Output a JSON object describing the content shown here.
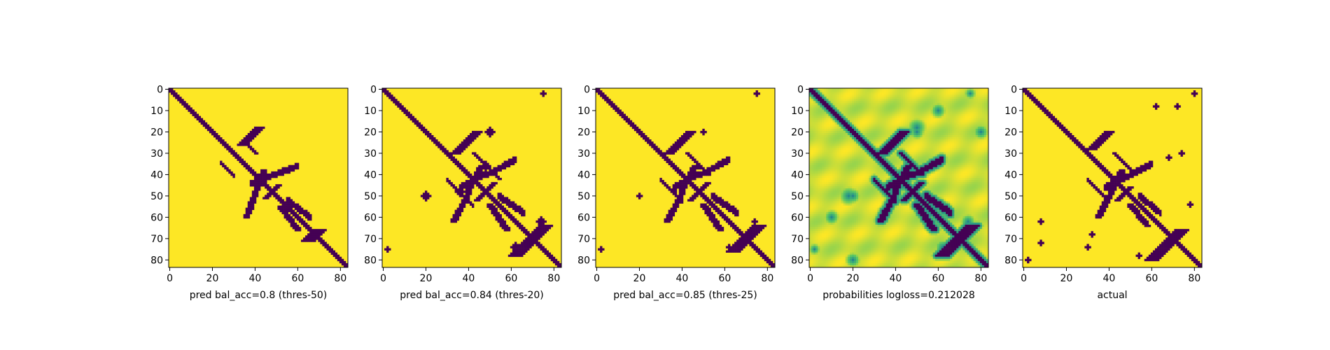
{
  "chart_data": [
    {
      "type": "heatmap",
      "xlabel": "pred bal_acc=0.8 (thres-50)",
      "xticks": [
        0,
        20,
        40,
        60,
        80
      ],
      "yticks": [
        0,
        10,
        20,
        30,
        40,
        50,
        60,
        70,
        80
      ],
      "xlim": [
        -0.5,
        83.5
      ],
      "ylim": [
        83.5,
        -0.5
      ],
      "colormap": "viridis",
      "value_range": [
        0,
        1
      ],
      "size": 84,
      "description": "binary contact map; 0 = dark purple (contact), 1 = yellow",
      "structures": {
        "main_diagonal": true,
        "band_diagonals": [
          [
            0,
            18,
            24,
            1
          ],
          [
            10,
            24,
            30,
            1
          ]
        ],
        "antidiagonals": [
          [
            30,
            18,
            26,
            2
          ],
          [
            48,
            45,
            51,
            1
          ],
          [
            68,
            66,
            71,
            3
          ]
        ],
        "arcs": [
          [
            44,
            38,
            36,
            60,
            1
          ],
          [
            52,
            55,
            60,
            66,
            1
          ]
        ]
      }
    },
    {
      "type": "heatmap",
      "xlabel": "pred bal_acc=0.84 (thres-20)",
      "xticks": [
        0,
        20,
        40,
        60,
        80
      ],
      "yticks": [
        0,
        10,
        20,
        30,
        40,
        50,
        60,
        70,
        80
      ],
      "xlim": [
        -0.5,
        83.5
      ],
      "ylim": [
        83.5,
        -0.5
      ],
      "colormap": "viridis",
      "value_range": [
        0,
        1
      ],
      "size": 84,
      "description": "binary contact map; 0 = dark purple (contact), 1 = yellow",
      "structures": {
        "main_diagonal": true,
        "band_diagonals": [
          [
            0,
            12,
            28,
            1
          ],
          [
            12,
            30,
            42,
            1
          ]
        ],
        "antidiagonals": [
          [
            32,
            20,
            30,
            2
          ],
          [
            48,
            44,
            52,
            1
          ],
          [
            70,
            64,
            78,
            3
          ]
        ],
        "arcs": [
          [
            46,
            36,
            33,
            62,
            1
          ],
          [
            50,
            54,
            58,
            66,
            1
          ]
        ],
        "blobs": [
          [
            50,
            20,
            2
          ],
          [
            36,
            48,
            2
          ],
          [
            75,
            2,
            1
          ],
          [
            62,
            74,
            2
          ]
        ]
      }
    },
    {
      "type": "heatmap",
      "xlabel": "pred bal_acc=0.85 (thres-25)",
      "xticks": [
        0,
        20,
        40,
        60,
        80
      ],
      "yticks": [
        0,
        10,
        20,
        30,
        40,
        50,
        60,
        70,
        80
      ],
      "xlim": [
        -0.5,
        83.5
      ],
      "ylim": [
        83.5,
        -0.5
      ],
      "colormap": "viridis",
      "value_range": [
        0,
        1
      ],
      "size": 84,
      "description": "binary contact map; 0 = dark purple (contact), 1 = yellow",
      "structures": {
        "main_diagonal": true,
        "band_diagonals": [
          [
            0,
            12,
            28,
            1
          ],
          [
            12,
            30,
            40,
            1
          ]
        ],
        "antidiagonals": [
          [
            32,
            20,
            30,
            2
          ],
          [
            48,
            44,
            52,
            1
          ],
          [
            70,
            64,
            76,
            3
          ]
        ],
        "arcs": [
          [
            46,
            36,
            33,
            62,
            1
          ],
          [
            50,
            54,
            58,
            66,
            1
          ]
        ],
        "blobs": [
          [
            50,
            20,
            1
          ],
          [
            36,
            48,
            1
          ],
          [
            75,
            2,
            1
          ],
          [
            62,
            74,
            1
          ]
        ]
      }
    },
    {
      "type": "heatmap",
      "xlabel": "probabilities logloss=0.212028",
      "xticks": [
        0,
        20,
        40,
        60,
        80
      ],
      "yticks": [
        0,
        10,
        20,
        30,
        40,
        50,
        60,
        70,
        80
      ],
      "xlim": [
        -0.5,
        83.5
      ],
      "ylim": [
        83.5,
        -0.5
      ],
      "colormap": "viridis",
      "value_range": [
        0,
        1
      ],
      "size": 84,
      "description": "continuous probability map",
      "structures": {
        "main_diagonal": true,
        "band_diagonals": [
          [
            0,
            14,
            28,
            1
          ],
          [
            12,
            30,
            40,
            1
          ]
        ],
        "antidiagonals": [
          [
            32,
            20,
            30,
            2
          ],
          [
            48,
            44,
            52,
            1
          ],
          [
            70,
            64,
            78,
            3
          ]
        ],
        "arcs": [
          [
            46,
            36,
            33,
            62,
            1
          ],
          [
            50,
            54,
            58,
            66,
            1
          ]
        ],
        "blobs": [
          [
            50,
            20,
            4
          ],
          [
            36,
            48,
            4
          ],
          [
            75,
            2,
            3
          ],
          [
            62,
            74,
            4
          ],
          [
            18,
            50,
            5
          ],
          [
            20,
            80,
            4
          ],
          [
            60,
            10,
            4
          ]
        ]
      }
    },
    {
      "type": "heatmap",
      "xlabel": "actual",
      "xticks": [
        0,
        20,
        40,
        60,
        80
      ],
      "yticks": [
        0,
        10,
        20,
        30,
        40,
        50,
        60,
        70,
        80
      ],
      "xlim": [
        -0.5,
        83.5
      ],
      "ylim": [
        83.5,
        -0.5
      ],
      "colormap": "viridis",
      "value_range": [
        0,
        1
      ],
      "size": 84,
      "description": "binary contact map; 0 = dark purple (contact), 1 = yellow",
      "structures": {
        "main_diagonal": true,
        "band_diagonals": [
          [
            0,
            14,
            30,
            1
          ],
          [
            12,
            30,
            40,
            1
          ]
        ],
        "antidiagonals": [
          [
            30,
            20,
            28,
            2
          ],
          [
            48,
            46,
            52,
            1
          ],
          [
            70,
            66,
            80,
            3
          ]
        ],
        "arcs": [
          [
            46,
            38,
            35,
            60,
            1
          ],
          [
            50,
            54,
            58,
            64,
            1
          ]
        ],
        "blobs": [
          [
            8,
            72,
            1
          ],
          [
            30,
            74,
            1
          ],
          [
            62,
            8,
            1
          ],
          [
            68,
            32,
            1
          ],
          [
            78,
            54,
            1
          ],
          [
            80,
            2,
            1
          ]
        ]
      }
    }
  ]
}
